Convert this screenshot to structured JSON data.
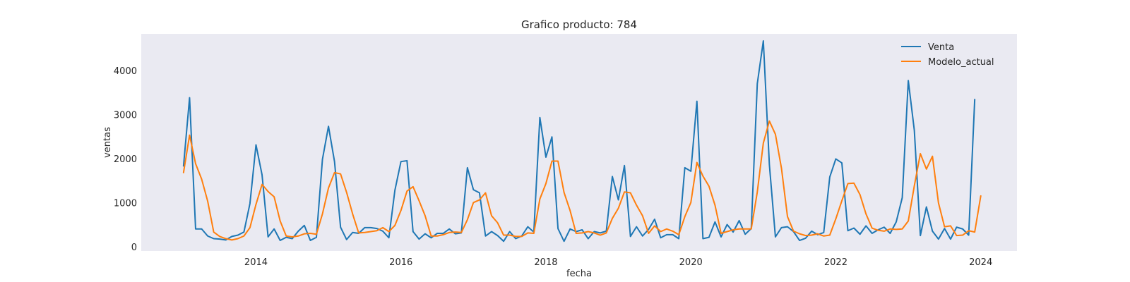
{
  "chart_data": {
    "type": "line",
    "title": "Grafico producto: 784",
    "xlabel": "fecha",
    "ylabel": "ventas",
    "x_start": "2013-01",
    "x_step": "month",
    "xlim": [
      "2012-06",
      "2024-07"
    ],
    "ylim": [
      -80,
      4850
    ],
    "xticks": [
      "2014",
      "2016",
      "2018",
      "2020",
      "2022",
      "2024"
    ],
    "yticks": [
      0,
      1000,
      2000,
      3000,
      4000
    ],
    "grid": false,
    "legend_position": "top-right",
    "background": "#eaeaf2",
    "series": [
      {
        "name": "Venta",
        "color": "#1f77b4",
        "values": [
          1850,
          3400,
          420,
          420,
          260,
          200,
          190,
          170,
          250,
          280,
          350,
          1000,
          2330,
          1650,
          240,
          420,
          160,
          230,
          200,
          370,
          500,
          160,
          230,
          2000,
          2750,
          1950,
          460,
          180,
          340,
          320,
          450,
          450,
          430,
          370,
          220,
          1300,
          1950,
          1970,
          360,
          190,
          310,
          220,
          320,
          320,
          420,
          310,
          330,
          1810,
          1310,
          1240,
          260,
          360,
          270,
          140,
          360,
          200,
          260,
          470,
          350,
          2950,
          2050,
          2510,
          430,
          140,
          420,
          360,
          400,
          200,
          360,
          330,
          370,
          1610,
          1080,
          1860,
          250,
          470,
          260,
          410,
          640,
          220,
          290,
          290,
          200,
          1810,
          1730,
          3320,
          200,
          230,
          580,
          240,
          520,
          350,
          610,
          300,
          430,
          3720,
          4690,
          1880,
          240,
          450,
          470,
          360,
          160,
          210,
          370,
          290,
          340,
          1600,
          2010,
          1920,
          380,
          440,
          300,
          490,
          320,
          400,
          460,
          320,
          580,
          1130,
          3790,
          2660,
          270,
          920,
          370,
          190,
          430,
          190,
          460,
          420,
          280,
          3360
        ]
      },
      {
        "name": "Modelo_actual",
        "color": "#ff7f0e",
        "values": [
          1700,
          2550,
          1900,
          1550,
          1050,
          350,
          250,
          200,
          170,
          200,
          260,
          450,
          980,
          1430,
          1270,
          1150,
          600,
          260,
          240,
          260,
          310,
          320,
          300,
          760,
          1350,
          1700,
          1670,
          1250,
          760,
          330,
          340,
          360,
          380,
          450,
          360,
          500,
          840,
          1280,
          1380,
          1060,
          720,
          260,
          260,
          290,
          340,
          350,
          340,
          630,
          1020,
          1080,
          1240,
          720,
          560,
          280,
          280,
          250,
          250,
          330,
          320,
          1100,
          1450,
          1960,
          1960,
          1250,
          840,
          320,
          330,
          360,
          330,
          280,
          330,
          660,
          890,
          1260,
          1240,
          960,
          720,
          320,
          490,
          360,
          420,
          370,
          290,
          700,
          1020,
          1930,
          1620,
          1390,
          960,
          320,
          360,
          400,
          420,
          420,
          420,
          1260,
          2370,
          2870,
          2570,
          1800,
          700,
          370,
          310,
          270,
          280,
          310,
          260,
          280,
          650,
          1060,
          1450,
          1460,
          1200,
          760,
          440,
          390,
          370,
          420,
          410,
          420,
          600,
          1400,
          2130,
          1780,
          2070,
          1010,
          470,
          490,
          270,
          280,
          380,
          350,
          1170
        ]
      }
    ]
  }
}
